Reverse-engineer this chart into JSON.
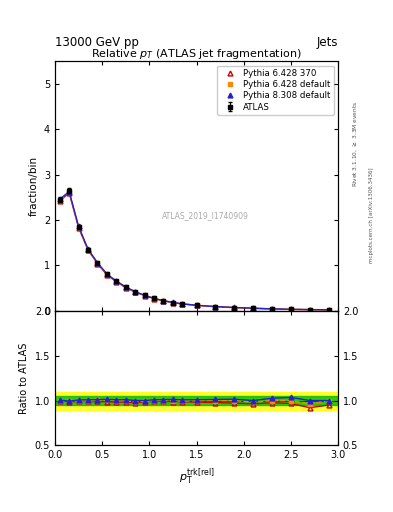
{
  "title": "Relative $p_{T}$ (ATLAS jet fragmentation)",
  "header_left": "13000 GeV pp",
  "header_right": "Jets",
  "ylabel_main": "fraction/bin",
  "ylabel_ratio": "Ratio to ATLAS",
  "xlabel": "$p_{\\textrm{T}}^{\\textrm{trk[rel]}}$",
  "watermark": "ATLAS_2019_I1740909",
  "right_label_top": "Rivet 3.1.10, $\\geq$ 3.3M events",
  "right_label_bot": "mcplots.cern.ch [arXiv:1306.3436]",
  "xlim": [
    0,
    3
  ],
  "ylim_main": [
    0,
    5.5
  ],
  "ylim_ratio": [
    0.5,
    2.0
  ],
  "yticks_main": [
    0,
    1,
    2,
    3,
    4,
    5
  ],
  "yticks_ratio": [
    0.5,
    1.0,
    1.5,
    2.0
  ],
  "x_data": [
    0.05,
    0.15,
    0.25,
    0.35,
    0.45,
    0.55,
    0.65,
    0.75,
    0.85,
    0.95,
    1.05,
    1.15,
    1.25,
    1.35,
    1.5,
    1.7,
    1.9,
    2.1,
    2.3,
    2.5,
    2.7,
    2.9
  ],
  "atlas_y": [
    2.45,
    2.65,
    1.85,
    1.35,
    1.05,
    0.8,
    0.65,
    0.52,
    0.42,
    0.34,
    0.27,
    0.22,
    0.18,
    0.15,
    0.12,
    0.09,
    0.07,
    0.055,
    0.04,
    0.03,
    0.025,
    0.02
  ],
  "atlas_err": [
    0.05,
    0.05,
    0.04,
    0.03,
    0.02,
    0.02,
    0.015,
    0.012,
    0.01,
    0.008,
    0.007,
    0.006,
    0.005,
    0.004,
    0.003,
    0.003,
    0.002,
    0.002,
    0.002,
    0.002,
    0.001,
    0.001
  ],
  "py6428_370_y": [
    2.42,
    2.6,
    1.83,
    1.34,
    1.04,
    0.79,
    0.64,
    0.51,
    0.41,
    0.335,
    0.268,
    0.218,
    0.178,
    0.148,
    0.118,
    0.088,
    0.068,
    0.053,
    0.039,
    0.029,
    0.023,
    0.019
  ],
  "py6428_def_y": [
    2.44,
    2.62,
    1.84,
    1.345,
    1.05,
    0.805,
    0.648,
    0.518,
    0.415,
    0.337,
    0.27,
    0.22,
    0.18,
    0.149,
    0.12,
    0.09,
    0.07,
    0.054,
    0.04,
    0.03,
    0.024,
    0.02
  ],
  "py8308_def_y": [
    2.46,
    2.63,
    1.86,
    1.36,
    1.06,
    0.81,
    0.655,
    0.525,
    0.42,
    0.34,
    0.272,
    0.222,
    0.182,
    0.151,
    0.121,
    0.091,
    0.071,
    0.055,
    0.041,
    0.031,
    0.025,
    0.02
  ],
  "ratio_py6428_370": [
    1.0,
    0.985,
    0.99,
    0.99,
    0.99,
    0.985,
    0.985,
    0.981,
    0.976,
    0.985,
    0.993,
    0.991,
    0.989,
    0.987,
    0.983,
    0.978,
    0.971,
    0.964,
    0.975,
    0.967,
    0.92,
    0.95
  ],
  "ratio_py6428_def": [
    1.0,
    0.99,
    0.997,
    0.997,
    1.001,
    1.007,
    0.997,
    0.996,
    0.988,
    0.991,
    1.0,
    1.0,
    1.0,
    0.993,
    1.0,
    1.0,
    1.0,
    0.982,
    1.0,
    1.0,
    0.96,
    1.0
  ],
  "ratio_py8308_def": [
    1.005,
    0.993,
    1.006,
    1.008,
    1.01,
    1.014,
    1.008,
    1.01,
    1.0,
    1.0,
    1.008,
    1.01,
    1.012,
    1.008,
    1.009,
    1.012,
    1.015,
    1.0,
    1.025,
    1.035,
    1.0,
    1.0
  ],
  "atlas_color": "#000000",
  "py6428_370_color": "#cc0000",
  "py6428_def_color": "#ff8800",
  "py8308_def_color": "#2222cc",
  "band_yellow": "#ffff00",
  "band_green": "#00bb00",
  "legend_labels": [
    "ATLAS",
    "Pythia 6.428 370",
    "Pythia 6.428 default",
    "Pythia 8.308 default"
  ]
}
